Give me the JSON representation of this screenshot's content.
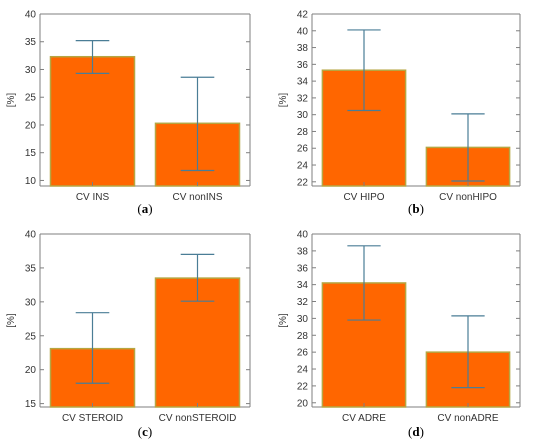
{
  "colors": {
    "bar_fill": "#ff6600",
    "bar_stroke": "#b5a642",
    "error_bar": "#4a7d96",
    "axis": "#7f7f7f"
  },
  "chart_data": [
    {
      "type": "bar",
      "panel": "(a)",
      "ylabel": "[%]",
      "ylim": [
        9,
        40
      ],
      "yticks": [
        10,
        15,
        20,
        25,
        30,
        35,
        40
      ],
      "categories": [
        "CV INS",
        "CV nonINS"
      ],
      "values": [
        32.3,
        20.3
      ],
      "error_low": [
        29.3,
        11.8
      ],
      "error_high": [
        35.2,
        28.6
      ],
      "grid": false
    },
    {
      "type": "bar",
      "panel": "(b)",
      "ylabel": "[%]",
      "ylim": [
        21.5,
        42
      ],
      "yticks": [
        22,
        24,
        26,
        28,
        30,
        32,
        34,
        36,
        38,
        40,
        42
      ],
      "categories": [
        "CV HIPO",
        "CV nonHIPO"
      ],
      "values": [
        35.3,
        26.1
      ],
      "error_low": [
        30.5,
        22.1
      ],
      "error_high": [
        40.1,
        30.1
      ],
      "grid": false
    },
    {
      "type": "bar",
      "panel": "(c)",
      "ylabel": "[%]",
      "ylim": [
        14.5,
        40
      ],
      "yticks": [
        15,
        20,
        25,
        30,
        35,
        40
      ],
      "categories": [
        "CV STEROID",
        "CV nonSTEROID"
      ],
      "values": [
        23.1,
        33.5
      ],
      "error_low": [
        18.0,
        30.1
      ],
      "error_high": [
        28.4,
        37.0
      ],
      "grid": false
    },
    {
      "type": "bar",
      "panel": "(d)",
      "ylabel": "[%]",
      "ylim": [
        19.5,
        40
      ],
      "yticks": [
        20,
        22,
        24,
        26,
        28,
        30,
        32,
        34,
        36,
        38,
        40
      ],
      "categories": [
        "CV ADRE",
        "CV nonADRE"
      ],
      "values": [
        34.2,
        26.0
      ],
      "error_low": [
        29.8,
        21.8
      ],
      "error_high": [
        38.6,
        30.3
      ],
      "grid": false
    }
  ]
}
